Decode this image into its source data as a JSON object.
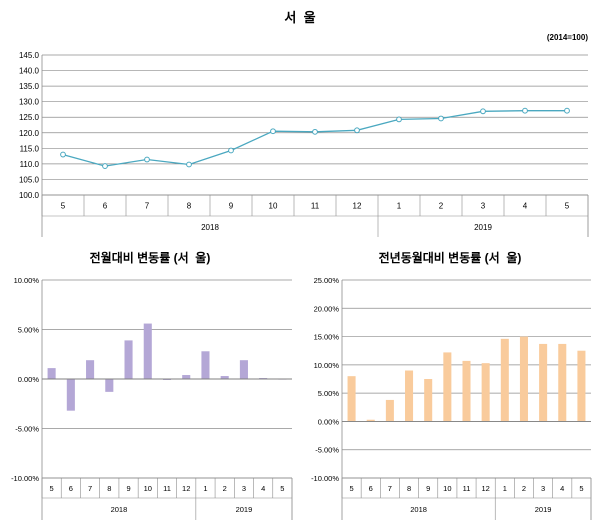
{
  "chart_data": [
    {
      "type": "line",
      "title": "서  울",
      "note": "(2014=100)",
      "categories": [
        "5",
        "6",
        "7",
        "8",
        "9",
        "10",
        "11",
        "12",
        "1",
        "2",
        "3",
        "4",
        "5"
      ],
      "year_groups": [
        {
          "label": "2018",
          "count": 8
        },
        {
          "label": "2019",
          "count": 5
        }
      ],
      "values": [
        113.0,
        109.3,
        111.4,
        109.8,
        114.3,
        120.5,
        120.3,
        120.8,
        124.3,
        124.6,
        126.9,
        127.1,
        127.1
      ],
      "ylim": [
        100,
        145
      ],
      "yticks": [
        100,
        105,
        110,
        115,
        120,
        125,
        130,
        135,
        140,
        145
      ],
      "ytick_labels": [
        "100.0",
        "105.0",
        "110.0",
        "115.0",
        "120.0",
        "125.0",
        "130.0",
        "135.0",
        "140.0",
        "145.0"
      ],
      "grid": true,
      "color": "#4aa8c0"
    },
    {
      "type": "bar",
      "title": "전월대비 변동률 (서  울)",
      "categories": [
        "5",
        "6",
        "7",
        "8",
        "9",
        "10",
        "11",
        "12",
        "1",
        "2",
        "3",
        "4",
        "5"
      ],
      "year_groups": [
        {
          "label": "2018",
          "count": 8
        },
        {
          "label": "2019",
          "count": 5
        }
      ],
      "values": [
        1.1,
        -3.2,
        1.9,
        -1.3,
        3.9,
        5.6,
        -0.1,
        0.4,
        2.8,
        0.3,
        1.9,
        0.1,
        0.0
      ],
      "ylim": [
        -10,
        10
      ],
      "yticks": [
        -10,
        -5,
        0,
        5,
        10
      ],
      "ytick_labels": [
        "-10.00%",
        "-5.00%",
        "0.00%",
        "5.00%",
        "10.00%"
      ],
      "grid": true,
      "color": "#b4a7d6"
    },
    {
      "type": "bar",
      "title": "전년동월대비 변동률 (서  울)",
      "categories": [
        "5",
        "6",
        "7",
        "8",
        "9",
        "10",
        "11",
        "12",
        "1",
        "2",
        "3",
        "4",
        "5"
      ],
      "year_groups": [
        {
          "label": "2018",
          "count": 8
        },
        {
          "label": "2019",
          "count": 5
        }
      ],
      "values": [
        8.0,
        0.3,
        3.8,
        9.0,
        7.5,
        12.2,
        10.7,
        10.3,
        14.6,
        15.0,
        13.7,
        13.7,
        12.5
      ],
      "ylim": [
        -10,
        25
      ],
      "yticks": [
        -10,
        -5,
        0,
        5,
        10,
        15,
        20,
        25
      ],
      "ytick_labels": [
        "-10.00%",
        "-5.00%",
        "0.00%",
        "5.00%",
        "10.00%",
        "15.00%",
        "20.00%",
        "25.00%"
      ],
      "grid": true,
      "color": "#f9cb9c"
    }
  ]
}
